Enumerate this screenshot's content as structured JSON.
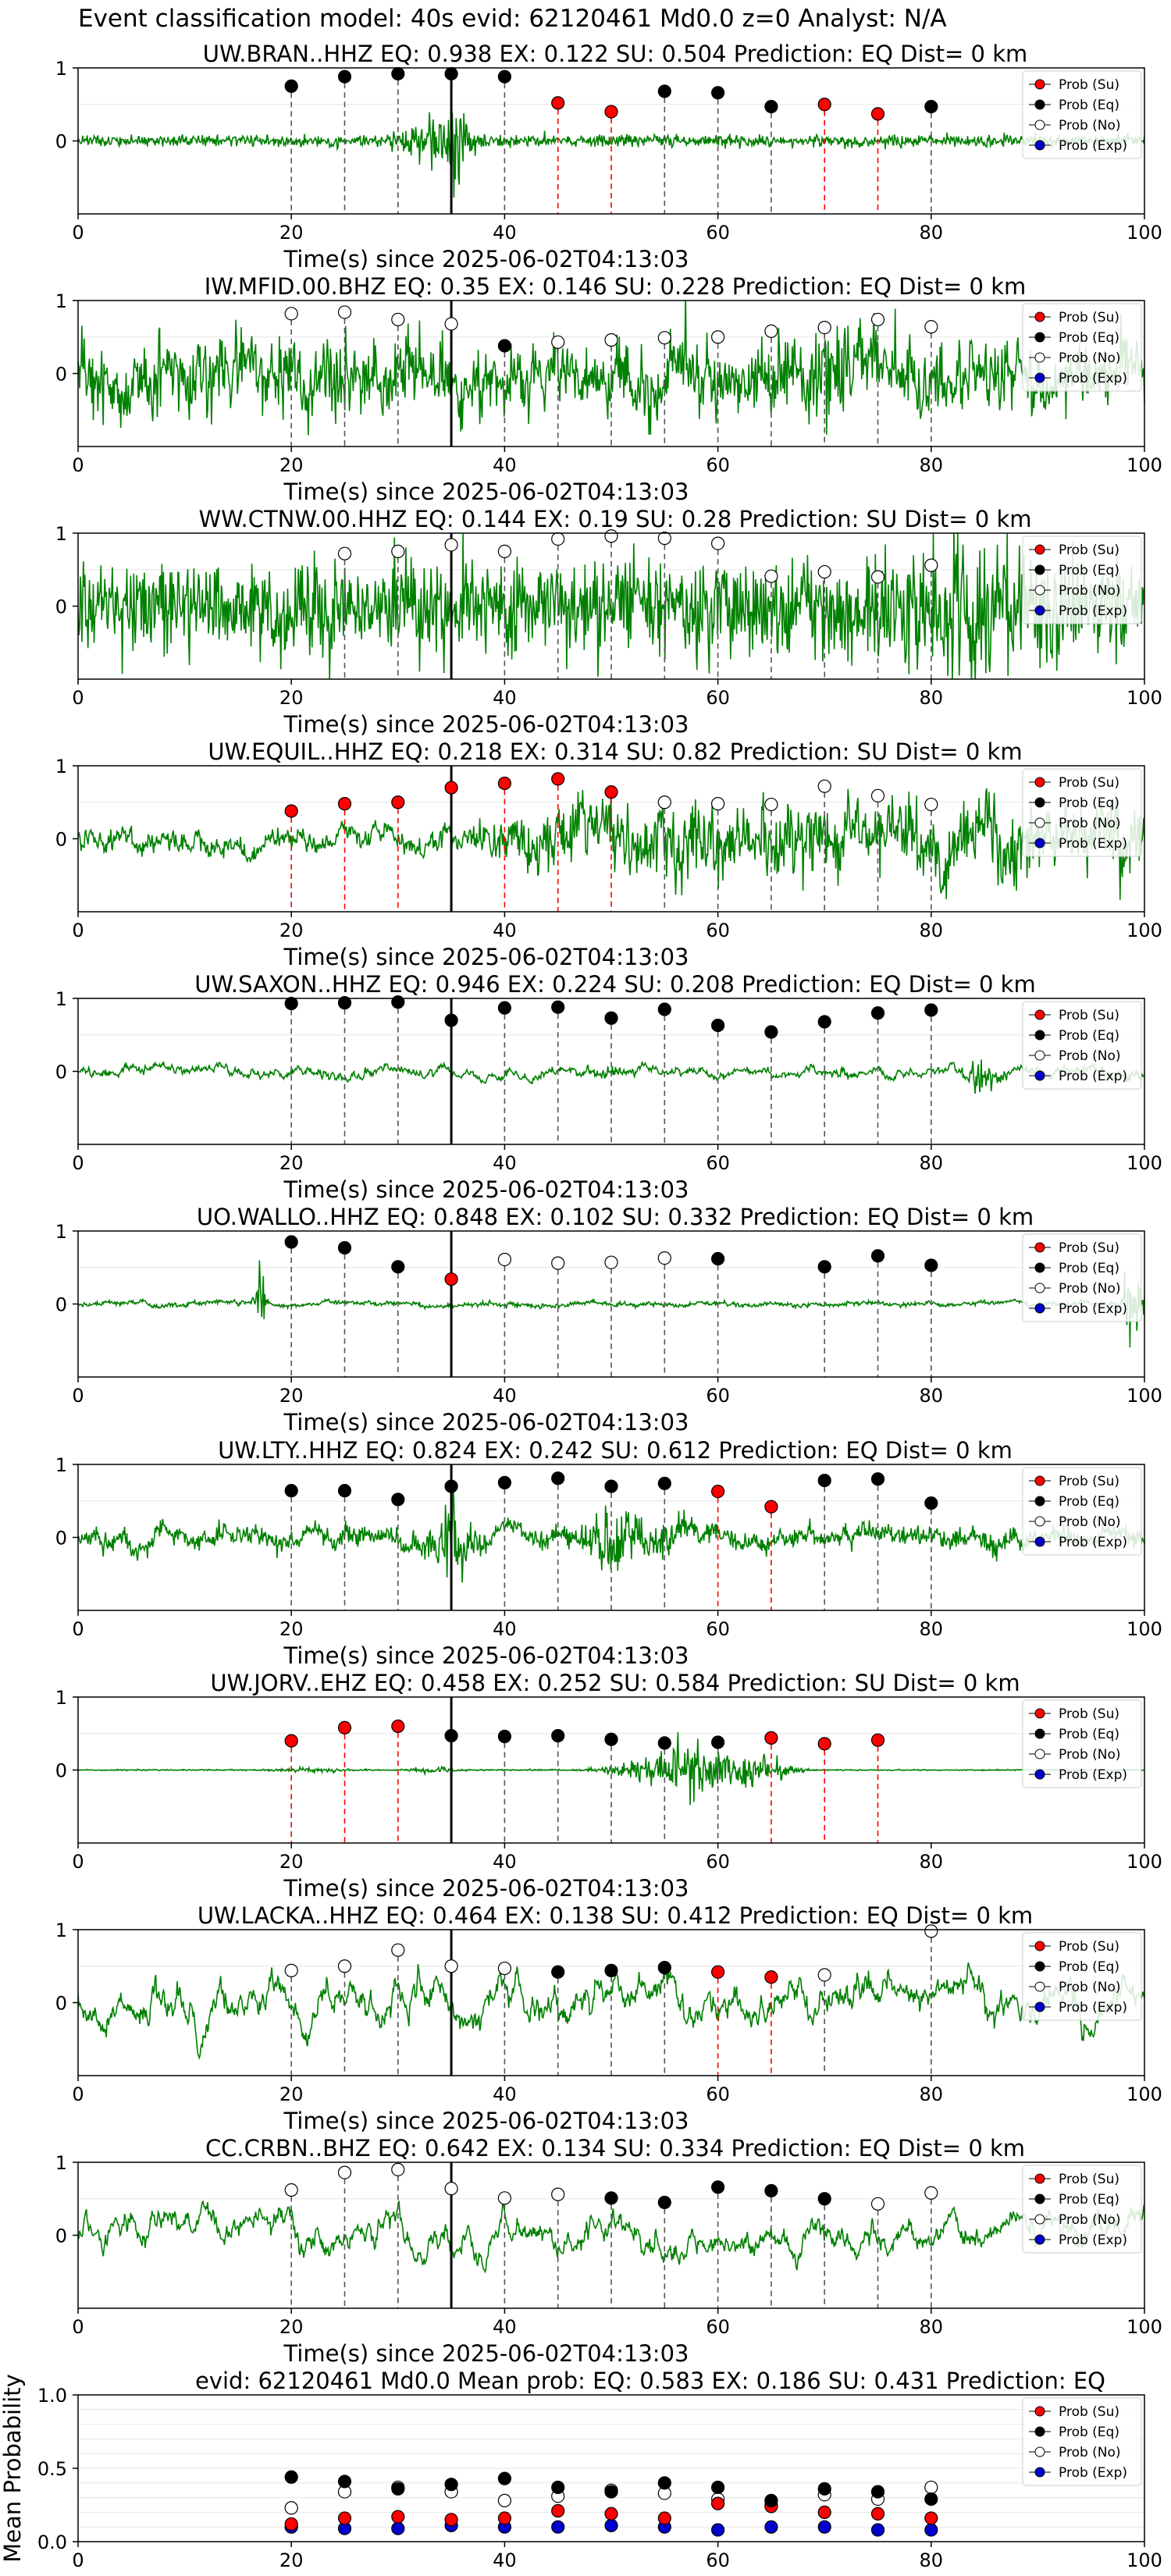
{
  "suptitle": "Event classification model: 40s evid: 62120461 Md0.0 z=0 Analyst: N/A",
  "legend_labels": [
    "Prob (Su)",
    "Prob (Eq)",
    "Prob (No)",
    "Prob (Exp)"
  ],
  "colors": {
    "waveform": "#008000",
    "su": "#ff0000",
    "eq": "#000000",
    "no": "#ffffff",
    "exp": "#0000cc",
    "su_line": "#ff0000",
    "eq_line": "#555555",
    "origin_line": "#000000"
  },
  "chart_data": [
    {
      "type": "line",
      "title": "UW.BRAN..HHZ   EQ: 0.938  EX: 0.122  SU: 0.504   Prediction: EQ    Dist= 0 km",
      "xlabel": "Time(s) since 2025-06-02T04:13:03",
      "xlim": [
        0,
        100
      ],
      "ylim": [
        -1,
        1
      ],
      "yticks": [
        "1",
        "0"
      ],
      "xticks": [
        "0",
        "20",
        "40",
        "60",
        "80",
        "100"
      ],
      "origin_time": 35,
      "grid": true,
      "legend": "top-right",
      "markers": [
        {
          "t": 20,
          "p": 0.75,
          "c": "eq"
        },
        {
          "t": 25,
          "p": 0.88,
          "c": "eq"
        },
        {
          "t": 30,
          "p": 0.92,
          "c": "eq"
        },
        {
          "t": 35,
          "p": 0.92,
          "c": "eq"
        },
        {
          "t": 40,
          "p": 0.88,
          "c": "eq"
        },
        {
          "t": 45,
          "p": 0.52,
          "c": "su"
        },
        {
          "t": 50,
          "p": 0.4,
          "c": "su"
        },
        {
          "t": 55,
          "p": 0.68,
          "c": "eq"
        },
        {
          "t": 60,
          "p": 0.66,
          "c": "eq"
        },
        {
          "t": 65,
          "p": 0.47,
          "c": "eq"
        },
        {
          "t": 70,
          "p": 0.5,
          "c": "su"
        },
        {
          "t": 75,
          "p": 0.37,
          "c": "su"
        },
        {
          "t": 80,
          "p": 0.47,
          "c": "eq"
        }
      ]
    },
    {
      "type": "line",
      "title": "IW.MFID.00.BHZ   EQ: 0.35  EX: 0.146  SU: 0.228   Prediction: EQ    Dist= 0 km",
      "xlabel": "Time(s) since 2025-06-02T04:13:03",
      "xlim": [
        0,
        100
      ],
      "ylim": [
        -1,
        1
      ],
      "yticks": [
        "1",
        "0"
      ],
      "xticks": [
        "0",
        "20",
        "40",
        "60",
        "80",
        "100"
      ],
      "origin_time": 35,
      "grid": true,
      "legend": "top-right",
      "markers": [
        {
          "t": 20,
          "p": 0.82,
          "c": "no"
        },
        {
          "t": 25,
          "p": 0.84,
          "c": "no"
        },
        {
          "t": 30,
          "p": 0.74,
          "c": "no"
        },
        {
          "t": 35,
          "p": 0.68,
          "c": "no"
        },
        {
          "t": 40,
          "p": 0.38,
          "c": "eq"
        },
        {
          "t": 45,
          "p": 0.43,
          "c": "no"
        },
        {
          "t": 50,
          "p": 0.46,
          "c": "no"
        },
        {
          "t": 55,
          "p": 0.49,
          "c": "no"
        },
        {
          "t": 60,
          "p": 0.5,
          "c": "no"
        },
        {
          "t": 65,
          "p": 0.58,
          "c": "no"
        },
        {
          "t": 70,
          "p": 0.63,
          "c": "no"
        },
        {
          "t": 75,
          "p": 0.74,
          "c": "no"
        },
        {
          "t": 80,
          "p": 0.64,
          "c": "no"
        }
      ]
    },
    {
      "type": "line",
      "title": "WW.CTNW.00.HHZ   EQ: 0.144  EX: 0.19  SU: 0.28   Prediction: SU    Dist= 0 km",
      "xlabel": "Time(s) since 2025-06-02T04:13:03",
      "xlim": [
        0,
        100
      ],
      "ylim": [
        -1,
        1
      ],
      "yticks": [
        "1",
        "0"
      ],
      "xticks": [
        "0",
        "20",
        "40",
        "60",
        "80",
        "100"
      ],
      "origin_time": 35,
      "grid": true,
      "legend": "top-right",
      "markers": [
        {
          "t": 25,
          "p": 0.72,
          "c": "no"
        },
        {
          "t": 30,
          "p": 0.75,
          "c": "no"
        },
        {
          "t": 35,
          "p": 0.84,
          "c": "no"
        },
        {
          "t": 40,
          "p": 0.75,
          "c": "no"
        },
        {
          "t": 45,
          "p": 0.92,
          "c": "no"
        },
        {
          "t": 50,
          "p": 0.96,
          "c": "no"
        },
        {
          "t": 55,
          "p": 0.93,
          "c": "no"
        },
        {
          "t": 60,
          "p": 0.86,
          "c": "no"
        },
        {
          "t": 65,
          "p": 0.41,
          "c": "no"
        },
        {
          "t": 70,
          "p": 0.47,
          "c": "no"
        },
        {
          "t": 75,
          "p": 0.4,
          "c": "no"
        },
        {
          "t": 80,
          "p": 0.56,
          "c": "no"
        }
      ]
    },
    {
      "type": "line",
      "title": "UW.EQUIL..HHZ   EQ: 0.218  EX: 0.314  SU: 0.82   Prediction: SU    Dist= 0 km",
      "xlabel": "Time(s) since 2025-06-02T04:13:03",
      "xlim": [
        0,
        100
      ],
      "ylim": [
        -1,
        1
      ],
      "yticks": [
        "1",
        "0"
      ],
      "xticks": [
        "0",
        "20",
        "40",
        "60",
        "80",
        "100"
      ],
      "origin_time": 35,
      "grid": true,
      "legend": "top-right",
      "markers": [
        {
          "t": 20,
          "p": 0.38,
          "c": "su"
        },
        {
          "t": 25,
          "p": 0.48,
          "c": "su"
        },
        {
          "t": 30,
          "p": 0.5,
          "c": "su"
        },
        {
          "t": 35,
          "p": 0.7,
          "c": "su"
        },
        {
          "t": 40,
          "p": 0.76,
          "c": "su"
        },
        {
          "t": 45,
          "p": 0.82,
          "c": "su"
        },
        {
          "t": 50,
          "p": 0.64,
          "c": "su"
        },
        {
          "t": 55,
          "p": 0.5,
          "c": "no"
        },
        {
          "t": 60,
          "p": 0.48,
          "c": "no"
        },
        {
          "t": 65,
          "p": 0.47,
          "c": "no"
        },
        {
          "t": 70,
          "p": 0.72,
          "c": "no"
        },
        {
          "t": 75,
          "p": 0.59,
          "c": "no"
        },
        {
          "t": 80,
          "p": 0.47,
          "c": "no"
        }
      ]
    },
    {
      "type": "line",
      "title": "UW.SAXON..HHZ   EQ: 0.946  EX: 0.224  SU: 0.208   Prediction: EQ    Dist= 0 km",
      "xlabel": "Time(s) since 2025-06-02T04:13:03",
      "xlim": [
        0,
        100
      ],
      "ylim": [
        -1,
        1
      ],
      "yticks": [
        "1",
        "0"
      ],
      "xticks": [
        "0",
        "20",
        "40",
        "60",
        "80",
        "100"
      ],
      "origin_time": 35,
      "grid": true,
      "legend": "top-right",
      "markers": [
        {
          "t": 20,
          "p": 0.93,
          "c": "eq"
        },
        {
          "t": 25,
          "p": 0.94,
          "c": "eq"
        },
        {
          "t": 30,
          "p": 0.95,
          "c": "eq"
        },
        {
          "t": 35,
          "p": 0.7,
          "c": "eq"
        },
        {
          "t": 40,
          "p": 0.87,
          "c": "eq"
        },
        {
          "t": 45,
          "p": 0.88,
          "c": "eq"
        },
        {
          "t": 50,
          "p": 0.73,
          "c": "eq"
        },
        {
          "t": 55,
          "p": 0.85,
          "c": "eq"
        },
        {
          "t": 60,
          "p": 0.63,
          "c": "eq"
        },
        {
          "t": 65,
          "p": 0.54,
          "c": "eq"
        },
        {
          "t": 70,
          "p": 0.68,
          "c": "eq"
        },
        {
          "t": 75,
          "p": 0.8,
          "c": "eq"
        },
        {
          "t": 80,
          "p": 0.84,
          "c": "eq"
        }
      ]
    },
    {
      "type": "line",
      "title": "UO.WALLO..HHZ   EQ: 0.848  EX: 0.102  SU: 0.332   Prediction: EQ    Dist= 0 km",
      "xlabel": "Time(s) since 2025-06-02T04:13:03",
      "xlim": [
        0,
        100
      ],
      "ylim": [
        -1,
        1
      ],
      "yticks": [
        "1",
        "0"
      ],
      "xticks": [
        "0",
        "20",
        "40",
        "60",
        "80",
        "100"
      ],
      "origin_time": 35,
      "grid": true,
      "legend": "top-right",
      "markers": [
        {
          "t": 20,
          "p": 0.85,
          "c": "eq"
        },
        {
          "t": 25,
          "p": 0.77,
          "c": "eq"
        },
        {
          "t": 30,
          "p": 0.51,
          "c": "eq"
        },
        {
          "t": 35,
          "p": 0.34,
          "c": "su"
        },
        {
          "t": 40,
          "p": 0.61,
          "c": "no"
        },
        {
          "t": 45,
          "p": 0.56,
          "c": "no"
        },
        {
          "t": 50,
          "p": 0.57,
          "c": "no"
        },
        {
          "t": 55,
          "p": 0.63,
          "c": "no"
        },
        {
          "t": 60,
          "p": 0.62,
          "c": "eq"
        },
        {
          "t": 70,
          "p": 0.51,
          "c": "eq"
        },
        {
          "t": 75,
          "p": 0.66,
          "c": "eq"
        },
        {
          "t": 80,
          "p": 0.53,
          "c": "eq"
        }
      ]
    },
    {
      "type": "line",
      "title": "UW.LTY..HHZ   EQ: 0.824  EX: 0.242  SU: 0.612   Prediction: EQ    Dist= 0 km",
      "xlabel": "Time(s) since 2025-06-02T04:13:03",
      "xlim": [
        0,
        100
      ],
      "ylim": [
        -1,
        1
      ],
      "yticks": [
        "1",
        "0"
      ],
      "xticks": [
        "0",
        "20",
        "40",
        "60",
        "80",
        "100"
      ],
      "origin_time": 35,
      "grid": true,
      "legend": "top-right",
      "markers": [
        {
          "t": 20,
          "p": 0.64,
          "c": "eq"
        },
        {
          "t": 25,
          "p": 0.64,
          "c": "eq"
        },
        {
          "t": 30,
          "p": 0.52,
          "c": "eq"
        },
        {
          "t": 35,
          "p": 0.7,
          "c": "eq"
        },
        {
          "t": 40,
          "p": 0.75,
          "c": "eq"
        },
        {
          "t": 45,
          "p": 0.81,
          "c": "eq"
        },
        {
          "t": 50,
          "p": 0.7,
          "c": "eq"
        },
        {
          "t": 55,
          "p": 0.74,
          "c": "eq"
        },
        {
          "t": 60,
          "p": 0.63,
          "c": "su"
        },
        {
          "t": 65,
          "p": 0.42,
          "c": "su"
        },
        {
          "t": 70,
          "p": 0.78,
          "c": "eq"
        },
        {
          "t": 75,
          "p": 0.8,
          "c": "eq"
        },
        {
          "t": 80,
          "p": 0.47,
          "c": "eq"
        }
      ]
    },
    {
      "type": "line",
      "title": "UW.JORV..EHZ   EQ: 0.458  EX: 0.252  SU: 0.584   Prediction: SU    Dist= 0 km",
      "xlabel": "Time(s) since 2025-06-02T04:13:03",
      "xlim": [
        0,
        100
      ],
      "ylim": [
        -1,
        1
      ],
      "yticks": [
        "1",
        "0"
      ],
      "xticks": [
        "0",
        "20",
        "40",
        "60",
        "80",
        "100"
      ],
      "origin_time": 35,
      "grid": true,
      "legend": "top-right",
      "markers": [
        {
          "t": 20,
          "p": 0.4,
          "c": "su"
        },
        {
          "t": 25,
          "p": 0.58,
          "c": "su"
        },
        {
          "t": 30,
          "p": 0.6,
          "c": "su"
        },
        {
          "t": 35,
          "p": 0.47,
          "c": "eq"
        },
        {
          "t": 40,
          "p": 0.46,
          "c": "eq"
        },
        {
          "t": 45,
          "p": 0.47,
          "c": "eq"
        },
        {
          "t": 50,
          "p": 0.42,
          "c": "eq"
        },
        {
          "t": 55,
          "p": 0.37,
          "c": "eq"
        },
        {
          "t": 60,
          "p": 0.38,
          "c": "eq"
        },
        {
          "t": 65,
          "p": 0.44,
          "c": "su"
        },
        {
          "t": 70,
          "p": 0.36,
          "c": "su"
        },
        {
          "t": 75,
          "p": 0.41,
          "c": "su"
        }
      ]
    },
    {
      "type": "line",
      "title": "UW.LACKA..HHZ   EQ: 0.464  EX: 0.138  SU: 0.412   Prediction: EQ    Dist= 0 km",
      "xlabel": "Time(s) since 2025-06-02T04:13:03",
      "xlim": [
        0,
        100
      ],
      "ylim": [
        -1,
        1
      ],
      "yticks": [
        "1",
        "0"
      ],
      "xticks": [
        "0",
        "20",
        "40",
        "60",
        "80",
        "100"
      ],
      "origin_time": 35,
      "grid": true,
      "legend": "top-right",
      "markers": [
        {
          "t": 20,
          "p": 0.44,
          "c": "no"
        },
        {
          "t": 25,
          "p": 0.5,
          "c": "no"
        },
        {
          "t": 30,
          "p": 0.72,
          "c": "no"
        },
        {
          "t": 35,
          "p": 0.5,
          "c": "no"
        },
        {
          "t": 40,
          "p": 0.47,
          "c": "no"
        },
        {
          "t": 45,
          "p": 0.42,
          "c": "eq"
        },
        {
          "t": 50,
          "p": 0.44,
          "c": "eq"
        },
        {
          "t": 55,
          "p": 0.48,
          "c": "eq"
        },
        {
          "t": 60,
          "p": 0.42,
          "c": "su"
        },
        {
          "t": 65,
          "p": 0.35,
          "c": "su"
        },
        {
          "t": 70,
          "p": 0.38,
          "c": "no"
        },
        {
          "t": 80,
          "p": 0.98,
          "c": "no"
        }
      ]
    },
    {
      "type": "line",
      "title": "CC.CRBN..BHZ   EQ: 0.642  EX: 0.134  SU: 0.334   Prediction: EQ    Dist= 0 km",
      "xlabel": "Time(s) since 2025-06-02T04:13:03",
      "xlim": [
        0,
        100
      ],
      "ylim": [
        -1,
        1
      ],
      "yticks": [
        "1",
        "0"
      ],
      "xticks": [
        "0",
        "20",
        "40",
        "60",
        "80",
        "100"
      ],
      "origin_time": 35,
      "grid": true,
      "legend": "top-right",
      "markers": [
        {
          "t": 20,
          "p": 0.62,
          "c": "no"
        },
        {
          "t": 25,
          "p": 0.86,
          "c": "no"
        },
        {
          "t": 30,
          "p": 0.9,
          "c": "no"
        },
        {
          "t": 35,
          "p": 0.64,
          "c": "no"
        },
        {
          "t": 40,
          "p": 0.51,
          "c": "no"
        },
        {
          "t": 45,
          "p": 0.56,
          "c": "no"
        },
        {
          "t": 50,
          "p": 0.51,
          "c": "eq"
        },
        {
          "t": 55,
          "p": 0.45,
          "c": "eq"
        },
        {
          "t": 60,
          "p": 0.66,
          "c": "eq"
        },
        {
          "t": 65,
          "p": 0.61,
          "c": "eq"
        },
        {
          "t": 70,
          "p": 0.5,
          "c": "eq"
        },
        {
          "t": 75,
          "p": 0.43,
          "c": "no"
        },
        {
          "t": 80,
          "p": 0.58,
          "c": "no"
        }
      ]
    },
    {
      "type": "scatter",
      "title": "evid: 62120461  Md0.0   Mean prob:   EQ: 0.583  EX: 0.186  SU: 0.431   Prediction: EQ",
      "ylabel": "Mean Probability",
      "xlim": [
        0,
        100
      ],
      "ylim": [
        0,
        1
      ],
      "yticks": [
        "1.0",
        "0.5",
        "0.0"
      ],
      "xticks": [
        "0",
        "20",
        "40",
        "60",
        "80",
        "100"
      ],
      "grid": true,
      "legend": "top-right",
      "x": [
        20,
        25,
        30,
        35,
        40,
        45,
        50,
        55,
        60,
        65,
        70,
        75,
        80
      ],
      "series": [
        {
          "name": "Prob (Su)",
          "c": "su",
          "values": [
            0.12,
            0.16,
            0.17,
            0.15,
            0.16,
            0.21,
            0.19,
            0.16,
            0.26,
            0.24,
            0.2,
            0.19,
            0.16
          ]
        },
        {
          "name": "Prob (Eq)",
          "c": "eq",
          "values": [
            0.44,
            0.41,
            0.36,
            0.39,
            0.43,
            0.37,
            0.34,
            0.4,
            0.37,
            0.28,
            0.36,
            0.34,
            0.29
          ]
        },
        {
          "name": "Prob (No)",
          "c": "no",
          "values": [
            0.23,
            0.34,
            0.37,
            0.34,
            0.28,
            0.31,
            0.35,
            0.33,
            0.29,
            0.25,
            0.32,
            0.29,
            0.37
          ]
        },
        {
          "name": "Prob (Exp)",
          "c": "exp",
          "values": [
            0.1,
            0.09,
            0.09,
            0.11,
            0.1,
            0.1,
            0.11,
            0.1,
            0.08,
            0.1,
            0.1,
            0.08,
            0.08
          ]
        }
      ]
    }
  ]
}
